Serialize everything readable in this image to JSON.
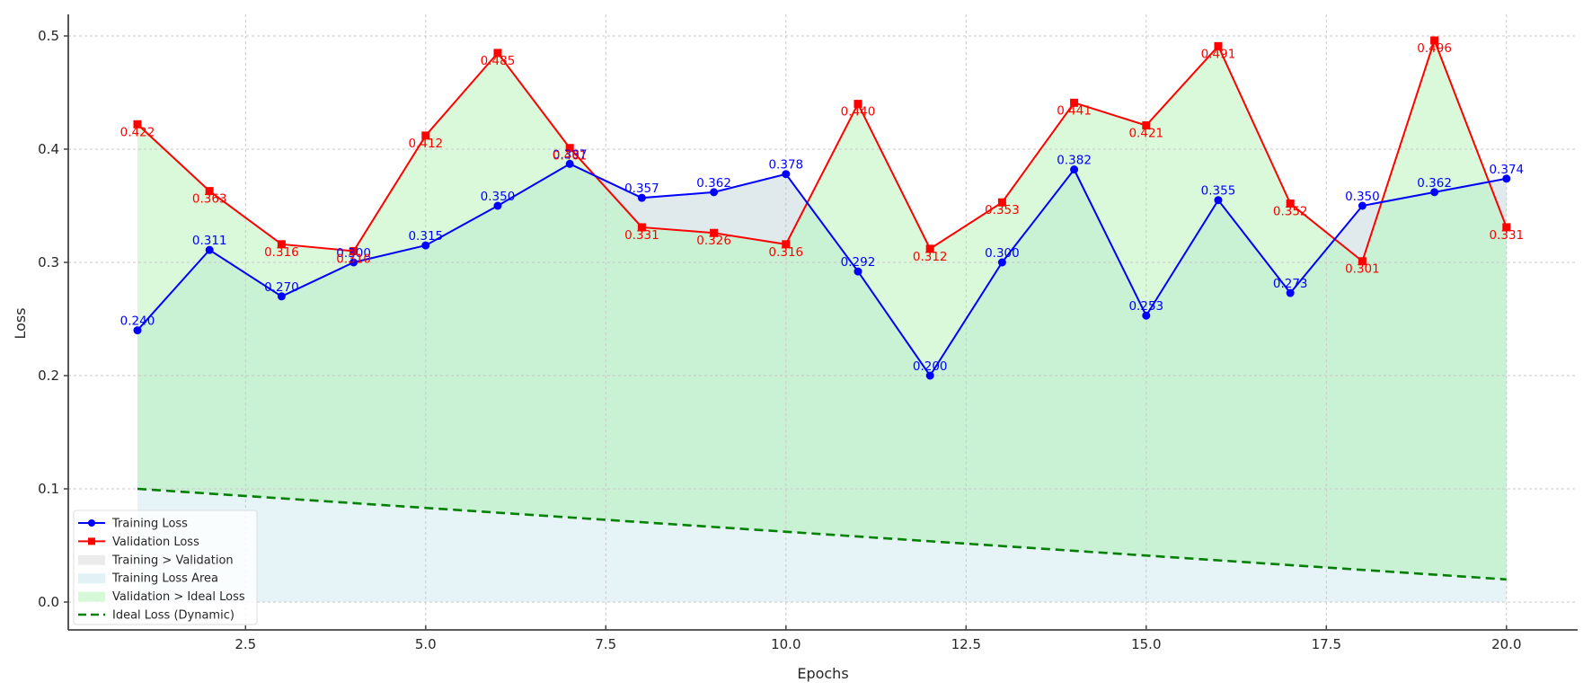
{
  "chart_data": {
    "type": "line",
    "title": "",
    "xlabel": "Epochs",
    "ylabel": "Loss",
    "xlim": [
      0.2,
      20.95
    ],
    "ylim": [
      -0.025,
      0.52
    ],
    "x_ticks": [
      2.5,
      5.0,
      7.5,
      10.0,
      12.5,
      15.0,
      17.5,
      20.0
    ],
    "x_tick_labels": [
      "2.5",
      "5.0",
      "7.5",
      "10.0",
      "12.5",
      "15.0",
      "17.5",
      "20.0"
    ],
    "y_ticks": [
      0.0,
      0.1,
      0.2,
      0.3,
      0.4,
      0.5
    ],
    "y_tick_labels": [
      "0.0",
      "0.1",
      "0.2",
      "0.3",
      "0.4",
      "0.5"
    ],
    "grid": true,
    "legend_position": "lower left",
    "x": [
      1,
      2,
      3,
      4,
      5,
      6,
      7,
      8,
      9,
      10,
      11,
      12,
      13,
      14,
      15,
      16,
      17,
      18,
      19,
      20
    ],
    "series": [
      {
        "name": "Training Loss",
        "color": "#0000ff",
        "marker": "circle",
        "values": [
          0.24,
          0.311,
          0.27,
          0.3,
          0.315,
          0.35,
          0.387,
          0.357,
          0.362,
          0.378,
          0.292,
          0.2,
          0.3,
          0.382,
          0.253,
          0.355,
          0.273,
          0.35,
          0.362,
          0.374
        ]
      },
      {
        "name": "Validation Loss",
        "color": "#ff0000",
        "marker": "square",
        "values": [
          0.422,
          0.363,
          0.316,
          0.31,
          0.412,
          0.485,
          0.401,
          0.331,
          0.326,
          0.316,
          0.44,
          0.312,
          0.353,
          0.441,
          0.421,
          0.491,
          0.352,
          0.301,
          0.496,
          0.331
        ]
      },
      {
        "name": "Ideal Loss (Dynamic)",
        "color": "#008000",
        "style": "dashed",
        "values": [
          0.1,
          0.02
        ],
        "x_range": [
          1,
          20
        ]
      }
    ],
    "fills": [
      {
        "name": "Training > Validation",
        "color": "#d3d3d3"
      },
      {
        "name": "Training Loss Area",
        "color": "#add8e6"
      },
      {
        "name": "Validation > Ideal Loss",
        "color": "#90ee90"
      }
    ],
    "legend": [
      "Training Loss",
      "Validation Loss",
      "Training > Validation",
      "Training Loss Area",
      "Validation > Ideal Loss",
      "Ideal Loss (Dynamic)"
    ]
  }
}
